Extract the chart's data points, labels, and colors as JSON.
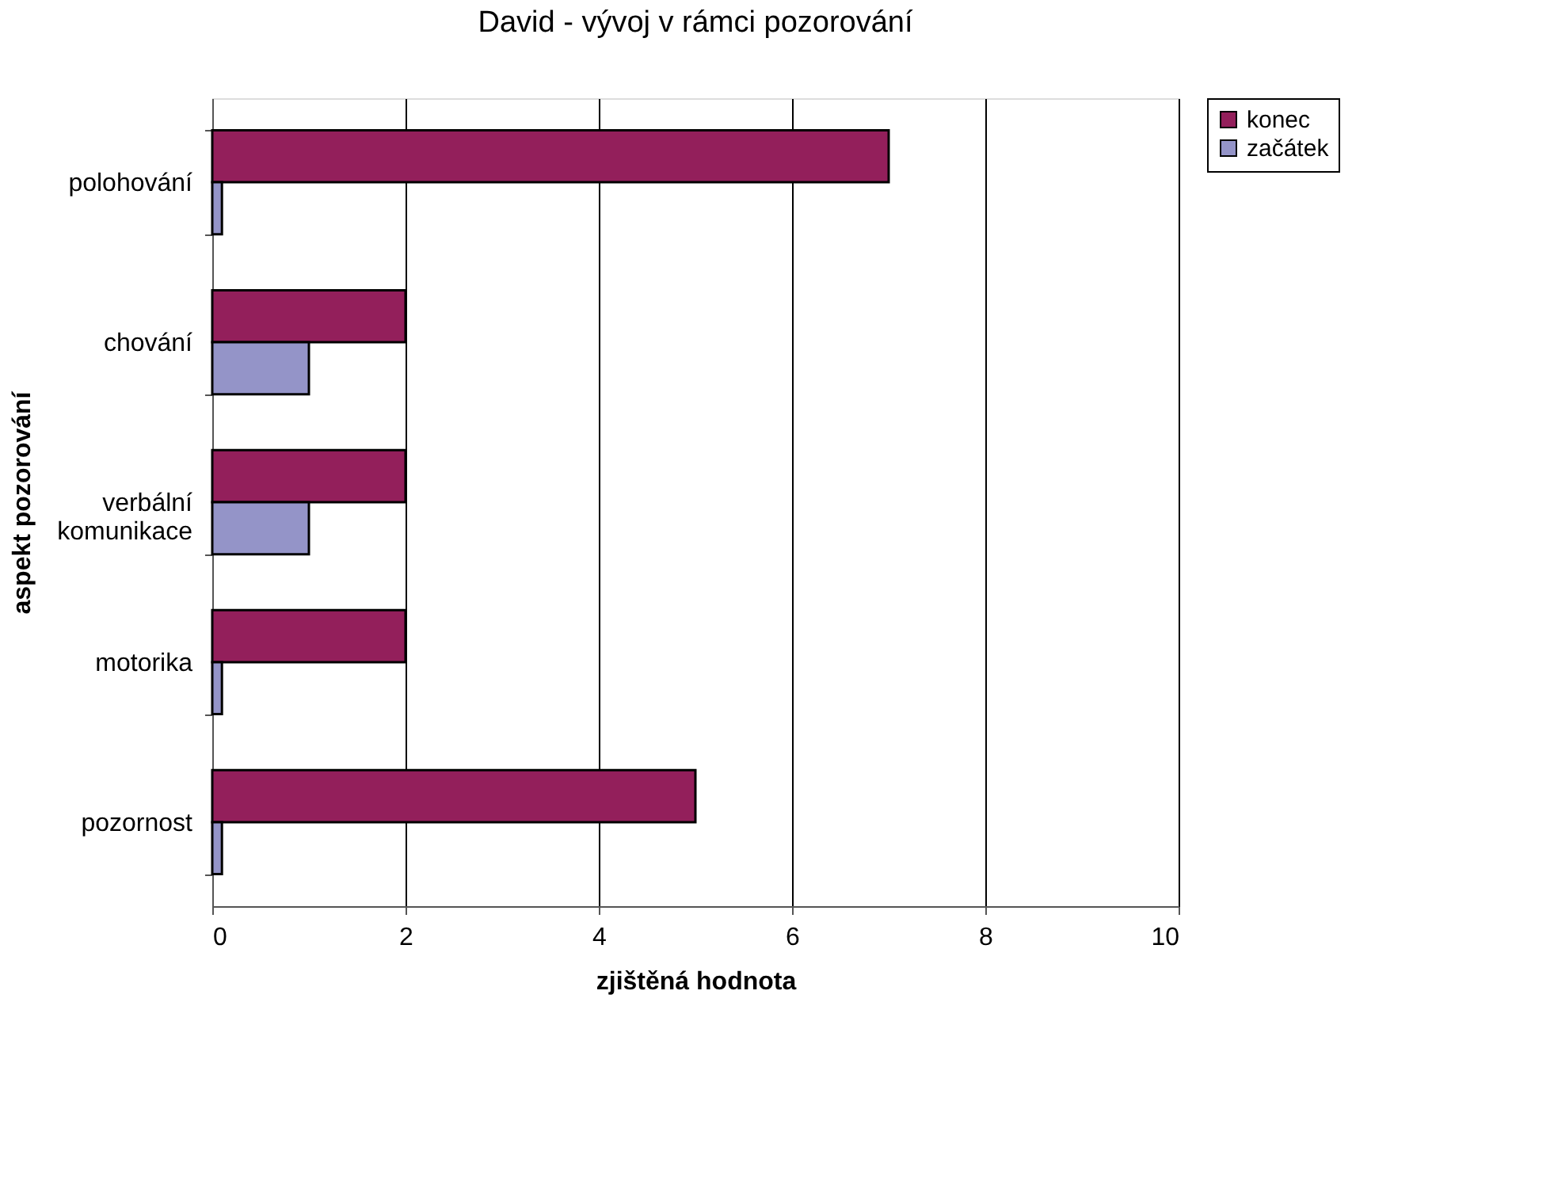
{
  "chart_data": {
    "type": "bar",
    "orientation": "horizontal",
    "title": "David - vývoj v rámci pozorování",
    "xlabel": "zjištěná hodnota",
    "ylabel": "aspekt pozorování",
    "categories": [
      "polohování",
      "chování",
      "verbální komunikace",
      "motorika",
      "pozornost"
    ],
    "series": [
      {
        "name": "konec",
        "color": "#931f5b",
        "values": [
          7,
          2,
          2,
          2,
          5
        ]
      },
      {
        "name": "začátek",
        "color": "#9494c8",
        "values": [
          0.1,
          1,
          1,
          0.1,
          0.1
        ]
      }
    ],
    "xlim": [
      0,
      10
    ],
    "xticks": [
      0,
      2,
      4,
      6,
      8,
      10
    ],
    "grid": "x",
    "legend": "right"
  }
}
